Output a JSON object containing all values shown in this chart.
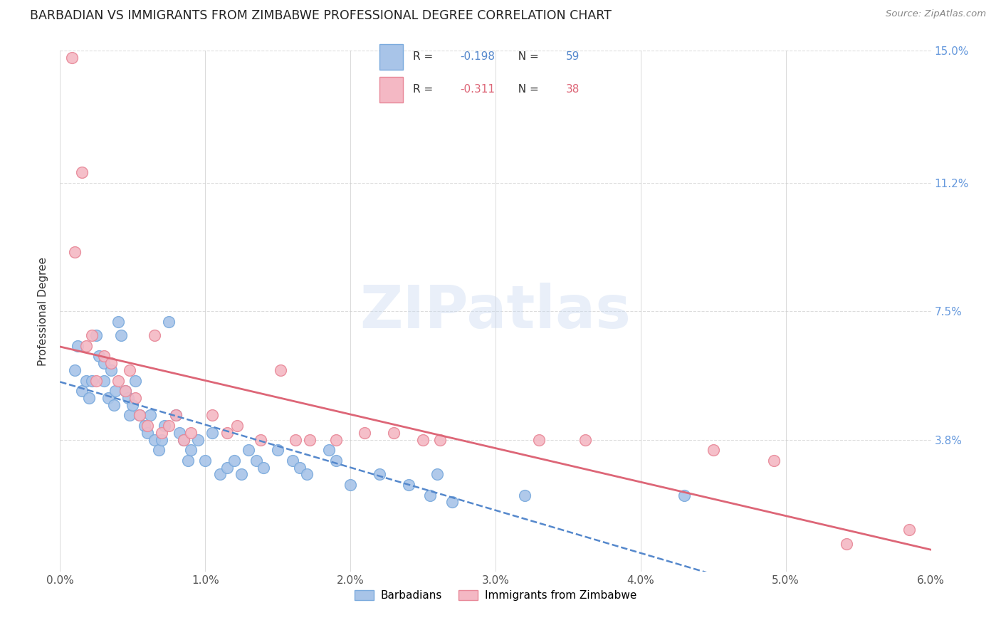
{
  "title": "BARBADIAN VS IMMIGRANTS FROM ZIMBABWE PROFESSIONAL DEGREE CORRELATION CHART",
  "source": "Source: ZipAtlas.com",
  "xlabel_ticks": [
    "0.0%",
    "1.0%",
    "2.0%",
    "3.0%",
    "4.0%",
    "5.0%",
    "6.0%"
  ],
  "xlabel_vals": [
    0.0,
    1.0,
    2.0,
    3.0,
    4.0,
    5.0,
    6.0
  ],
  "ylabel": "Professional Degree",
  "ylabel_ticks": [
    "3.8%",
    "7.5%",
    "11.2%",
    "15.0%"
  ],
  "ylabel_vals": [
    3.8,
    7.5,
    11.2,
    15.0
  ],
  "xlim": [
    0.0,
    6.0
  ],
  "ylim": [
    0.0,
    15.0
  ],
  "series1_label": "Barbadians",
  "series1_R": "-0.198",
  "series1_N": "59",
  "series1_color": "#a8c4e8",
  "series1_edgecolor": "#7aaadd",
  "series2_label": "Immigrants from Zimbabwe",
  "series2_R": "-0.311",
  "series2_N": "38",
  "series2_color": "#f4b8c4",
  "series2_edgecolor": "#e88898",
  "trend1_color": "#5588cc",
  "trend2_color": "#dd6677",
  "background_color": "#ffffff",
  "grid_color": "#dddddd",
  "title_color": "#222222",
  "right_label_color": "#6699dd",
  "watermark": "ZIPatlas",
  "series1_x": [
    0.1,
    0.12,
    0.15,
    0.18,
    0.2,
    0.22,
    0.25,
    0.27,
    0.3,
    0.3,
    0.33,
    0.35,
    0.37,
    0.38,
    0.4,
    0.42,
    0.45,
    0.47,
    0.48,
    0.5,
    0.52,
    0.55,
    0.58,
    0.6,
    0.62,
    0.65,
    0.68,
    0.7,
    0.72,
    0.75,
    0.8,
    0.82,
    0.85,
    0.88,
    0.9,
    0.95,
    1.0,
    1.05,
    1.1,
    1.15,
    1.2,
    1.25,
    1.3,
    1.35,
    1.4,
    1.5,
    1.6,
    1.65,
    1.7,
    1.85,
    1.9,
    2.0,
    2.2,
    2.4,
    2.55,
    2.6,
    2.7,
    3.2,
    4.3
  ],
  "series1_y": [
    5.8,
    6.5,
    5.2,
    5.5,
    5.0,
    5.5,
    6.8,
    6.2,
    5.5,
    6.0,
    5.0,
    5.8,
    4.8,
    5.2,
    7.2,
    6.8,
    5.2,
    5.0,
    4.5,
    4.8,
    5.5,
    4.5,
    4.2,
    4.0,
    4.5,
    3.8,
    3.5,
    3.8,
    4.2,
    7.2,
    4.5,
    4.0,
    3.8,
    3.2,
    3.5,
    3.8,
    3.2,
    4.0,
    2.8,
    3.0,
    3.2,
    2.8,
    3.5,
    3.2,
    3.0,
    3.5,
    3.2,
    3.0,
    2.8,
    3.5,
    3.2,
    2.5,
    2.8,
    2.5,
    2.2,
    2.8,
    2.0,
    2.2,
    2.2
  ],
  "series2_x": [
    0.08,
    0.1,
    0.15,
    0.18,
    0.22,
    0.25,
    0.3,
    0.35,
    0.4,
    0.45,
    0.48,
    0.52,
    0.55,
    0.6,
    0.65,
    0.7,
    0.75,
    0.8,
    0.85,
    0.9,
    1.05,
    1.15,
    1.22,
    1.38,
    1.52,
    1.62,
    1.72,
    1.9,
    2.1,
    2.3,
    2.5,
    2.62,
    3.3,
    3.62,
    4.5,
    4.92,
    5.42,
    5.85
  ],
  "series2_y": [
    14.8,
    9.2,
    11.5,
    6.5,
    6.8,
    5.5,
    6.2,
    6.0,
    5.5,
    5.2,
    5.8,
    5.0,
    4.5,
    4.2,
    6.8,
    4.0,
    4.2,
    4.5,
    3.8,
    4.0,
    4.5,
    4.0,
    4.2,
    3.8,
    5.8,
    3.8,
    3.8,
    3.8,
    4.0,
    4.0,
    3.8,
    3.8,
    3.8,
    3.8,
    3.5,
    3.2,
    0.8,
    1.2
  ],
  "figsize": [
    14.06,
    8.92
  ],
  "dpi": 100
}
